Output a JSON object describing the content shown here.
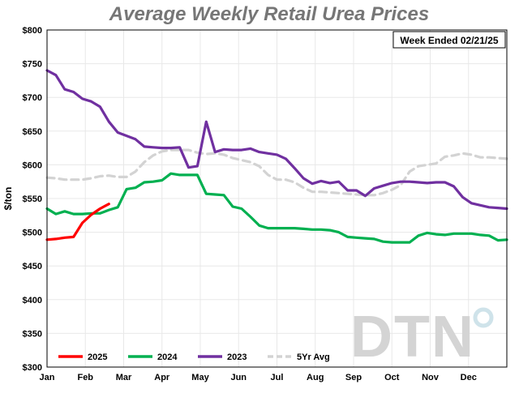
{
  "chart_data": {
    "type": "line",
    "title": "Average Weekly Retail Urea Prices",
    "annotation": "Week Ended 02/21/25",
    "ylabel": "$/ton",
    "xlabel": "",
    "ylim": [
      300,
      800
    ],
    "yticks": [
      300,
      350,
      400,
      450,
      500,
      550,
      600,
      650,
      700,
      750,
      800
    ],
    "ytick_labels": [
      "$300",
      "$350",
      "$400",
      "$450",
      "$500",
      "$550",
      "$600",
      "$650",
      "$700",
      "$750",
      "$800"
    ],
    "xlim": [
      0,
      52
    ],
    "x_unit": "week of year",
    "month_labels": [
      "Jan",
      "Feb",
      "Mar",
      "Apr",
      "May",
      "Jun",
      "Jul",
      "Aug",
      "Sep",
      "Oct",
      "Nov",
      "Dec"
    ],
    "grid": true,
    "legend_position": "bottom-left",
    "watermark": "DTN",
    "series": [
      {
        "name": "5Yr Avg",
        "color": "#d3d3d3",
        "dashed": true,
        "values": [
          581,
          580,
          578,
          578,
          578,
          580,
          583,
          584,
          582,
          582,
          590,
          604,
          614,
          620,
          622,
          622,
          622,
          618,
          616,
          617,
          615,
          610,
          607,
          604,
          598,
          585,
          578,
          578,
          574,
          566,
          560,
          560,
          559,
          558,
          557,
          556,
          555,
          555,
          558,
          563,
          570,
          590,
          598,
          600,
          602,
          612,
          614,
          617,
          615,
          611,
          611,
          610,
          609
        ]
      },
      {
        "name": "2023",
        "color": "#7030a0",
        "dashed": false,
        "values": [
          740,
          733,
          712,
          708,
          698,
          694,
          686,
          664,
          648,
          643,
          638,
          627,
          626,
          625,
          625,
          626,
          596,
          598,
          664,
          619,
          623,
          622,
          622,
          624,
          619,
          617,
          615,
          609,
          595,
          580,
          572,
          576,
          573,
          575,
          562,
          562,
          554,
          565,
          569,
          573,
          575,
          575,
          574,
          573,
          574,
          574,
          568,
          552,
          543,
          540,
          537,
          536,
          535
        ]
      },
      {
        "name": "2024",
        "color": "#00b050",
        "dashed": false,
        "values": [
          535,
          527,
          531,
          527,
          527,
          528,
          528,
          533,
          537,
          564,
          566,
          574,
          575,
          577,
          587,
          585,
          585,
          585,
          557,
          556,
          555,
          538,
          535,
          523,
          510,
          506,
          506,
          506,
          506,
          505,
          504,
          504,
          503,
          500,
          493,
          492,
          491,
          490,
          486,
          485,
          485,
          485,
          495,
          499,
          497,
          496,
          498,
          498,
          498,
          496,
          495,
          488,
          489
        ]
      },
      {
        "name": "2025",
        "color": "#ff0000",
        "dashed": false,
        "values": [
          489,
          490,
          492,
          493,
          514,
          526,
          535,
          542
        ]
      }
    ]
  }
}
